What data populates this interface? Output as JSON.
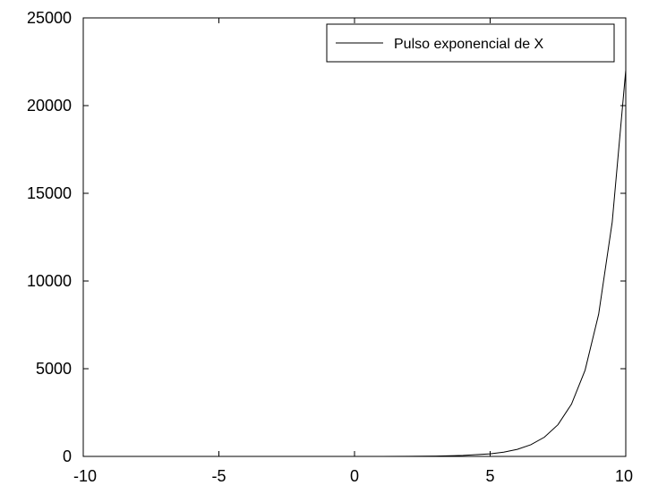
{
  "chart_data": {
    "type": "line",
    "title": "",
    "xlabel": "",
    "ylabel": "",
    "xlim": [
      -10,
      10
    ],
    "ylim": [
      0,
      25000
    ],
    "x_ticks": [
      "-10",
      "-5",
      "0",
      "5",
      "10"
    ],
    "y_ticks": [
      "0",
      "5000",
      "10000",
      "15000",
      "20000",
      "25000"
    ],
    "grid": false,
    "legend_position": "top-right",
    "series": [
      {
        "name": "Pulso exponencial de X",
        "color": "#000000",
        "x": [
          -10,
          -8,
          -6,
          -4,
          -2,
          0,
          1,
          2,
          3,
          4,
          5,
          5.5,
          6,
          6.5,
          7,
          7.5,
          8,
          8.5,
          9,
          9.5,
          10
        ],
        "y": [
          4.54e-05,
          0.000335,
          0.00248,
          0.0183,
          0.135,
          1,
          2.72,
          7.39,
          20.1,
          54.6,
          148.4,
          244.7,
          403.4,
          665.1,
          1096.6,
          1808.0,
          2981.0,
          4914.8,
          8103.1,
          13359.7,
          22026.5
        ]
      }
    ]
  }
}
